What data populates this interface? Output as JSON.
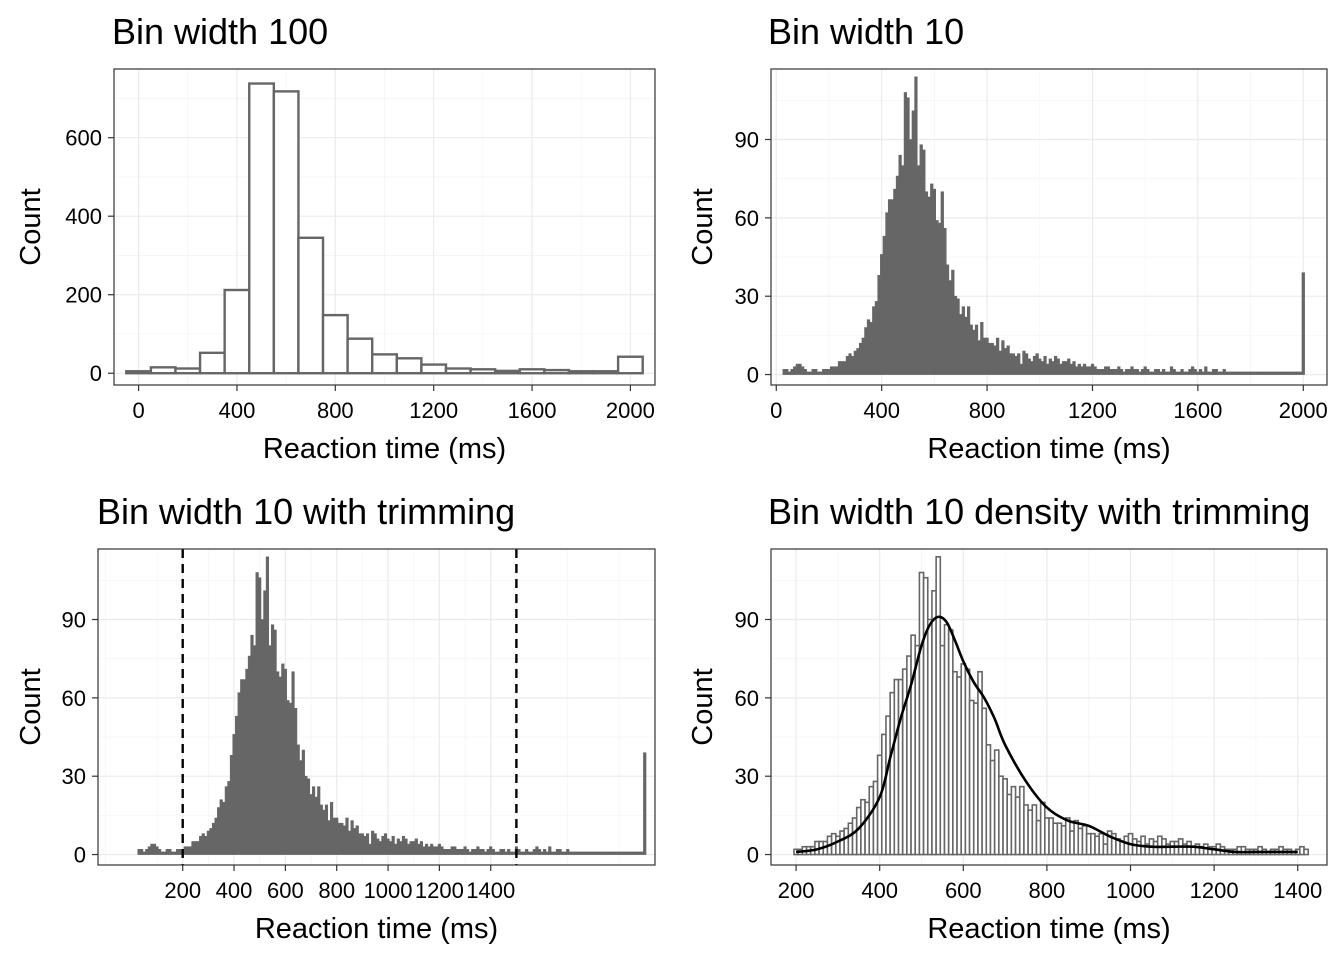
{
  "chart_data": [
    {
      "type": "bar",
      "title": "Bin width 100",
      "xlabel": "Reaction time (ms)",
      "ylabel": "Count",
      "xlim": [
        -100,
        2100
      ],
      "ylim": [
        -30,
        775
      ],
      "xticks": [
        0,
        400,
        800,
        1200,
        1600,
        2000
      ],
      "yticks": [
        0,
        200,
        400,
        600
      ],
      "style": "outline",
      "bin_width": 100,
      "bin_starts": [
        -50,
        50,
        150,
        250,
        350,
        450,
        550,
        650,
        750,
        850,
        950,
        1050,
        1150,
        1250,
        1350,
        1450,
        1550,
        1650,
        1750,
        1850,
        1950
      ],
      "values": [
        5,
        15,
        12,
        52,
        212,
        738,
        718,
        345,
        148,
        88,
        48,
        38,
        22,
        12,
        10,
        6,
        10,
        8,
        5,
        5,
        42
      ]
    },
    {
      "type": "bar",
      "title": "Bin width 10",
      "xlabel": "Reaction time (ms)",
      "ylabel": "Count",
      "xlim": [
        -20,
        2090
      ],
      "ylim": [
        -4,
        117
      ],
      "xticks": [
        0,
        400,
        800,
        1200,
        1600,
        2000
      ],
      "yticks": [
        0,
        30,
        60,
        90
      ],
      "style": "filled",
      "bin_width": 10,
      "bin_start": 25,
      "values": [
        2,
        2,
        1,
        2,
        3,
        4,
        4,
        3,
        2,
        1,
        1,
        2,
        2,
        1,
        1,
        2,
        2,
        2,
        3,
        3,
        3,
        5,
        5,
        5,
        7,
        8,
        7,
        9,
        10,
        12,
        14,
        18,
        21,
        20,
        26,
        28,
        38,
        46,
        53,
        62,
        67,
        67,
        71,
        76,
        84,
        80,
        108,
        106,
        90,
        101,
        114,
        80,
        88,
        86,
        70,
        68,
        73,
        71,
        59,
        58,
        70,
        56,
        42,
        36,
        40,
        30,
        29,
        23,
        26,
        22,
        26,
        19,
        17,
        19,
        13,
        20,
        14,
        14,
        12,
        12,
        11,
        14,
        9,
        13,
        10,
        11,
        8,
        8,
        7,
        8,
        4,
        9,
        8,
        6,
        5,
        7,
        8,
        6,
        5,
        7,
        4,
        6,
        5,
        7,
        6,
        4,
        5,
        5,
        6,
        4,
        5,
        3,
        4,
        3,
        4,
        3,
        3,
        4,
        3,
        2,
        2,
        2,
        3,
        3,
        2,
        2,
        2,
        3,
        2,
        1,
        2,
        2,
        3,
        2,
        2,
        1,
        2,
        3,
        2,
        1,
        1,
        2,
        2,
        1,
        2,
        1,
        1,
        3,
        2,
        1,
        1,
        2,
        1,
        1,
        2,
        3,
        2,
        1,
        2,
        1,
        3,
        1,
        1,
        2,
        2,
        1,
        1,
        2,
        1,
        1,
        1,
        1,
        1,
        1,
        1,
        1,
        1,
        1,
        1,
        1,
        1,
        1,
        1,
        1,
        1,
        1,
        1,
        1,
        1,
        1,
        1,
        1,
        1,
        1,
        1,
        1,
        1,
        39
      ]
    },
    {
      "type": "bar",
      "title": "Bin width 10 with trimming",
      "xlabel": "Reaction time (ms)",
      "ylabel": "Count",
      "xlim": [
        -130,
        2040
      ],
      "ylim": [
        -4,
        117
      ],
      "xticks": [
        200,
        400,
        600,
        800,
        1000,
        1200,
        1400
      ],
      "yticks": [
        0,
        30,
        60,
        90
      ],
      "style": "filled",
      "bin_width": 10,
      "bin_start": 25,
      "values": [
        2,
        2,
        1,
        2,
        3,
        4,
        4,
        3,
        2,
        1,
        1,
        2,
        2,
        1,
        1,
        2,
        2,
        2,
        3,
        3,
        3,
        5,
        5,
        5,
        7,
        8,
        7,
        9,
        10,
        12,
        14,
        18,
        21,
        20,
        26,
        28,
        38,
        46,
        53,
        62,
        67,
        67,
        71,
        76,
        84,
        80,
        108,
        106,
        90,
        101,
        114,
        80,
        88,
        86,
        70,
        68,
        73,
        71,
        59,
        58,
        70,
        56,
        42,
        36,
        40,
        30,
        29,
        23,
        26,
        22,
        26,
        19,
        17,
        19,
        13,
        20,
        14,
        14,
        12,
        12,
        11,
        14,
        9,
        13,
        10,
        11,
        8,
        8,
        7,
        8,
        4,
        9,
        8,
        6,
        5,
        7,
        8,
        6,
        5,
        7,
        4,
        6,
        5,
        7,
        6,
        4,
        5,
        5,
        6,
        4,
        5,
        3,
        4,
        3,
        4,
        3,
        3,
        4,
        3,
        2,
        2,
        2,
        3,
        3,
        2,
        2,
        2,
        3,
        2,
        1,
        2,
        2,
        3,
        2,
        2,
        1,
        2,
        3,
        2,
        1,
        1,
        2,
        2,
        1,
        2,
        1,
        1,
        3,
        2,
        1,
        1,
        2,
        1,
        1,
        2,
        3,
        2,
        1,
        2,
        1,
        3,
        1,
        1,
        2,
        2,
        1,
        1,
        2,
        1,
        1,
        1,
        1,
        1,
        1,
        1,
        1,
        1,
        1,
        1,
        1,
        1,
        1,
        1,
        1,
        1,
        1,
        1,
        1,
        1,
        1,
        1,
        1,
        1,
        1,
        1,
        1,
        1,
        39
      ],
      "vlines": [
        200,
        1500
      ]
    },
    {
      "type": "bar",
      "title": "Bin width 10 density with trimming",
      "xlabel": "Reaction time (ms)",
      "ylabel": "Count",
      "xlim": [
        140,
        1470
      ],
      "ylim": [
        -4,
        117
      ],
      "xticks": [
        200,
        400,
        600,
        800,
        1000,
        1200,
        1400
      ],
      "yticks": [
        0,
        30,
        60,
        90
      ],
      "style": "outline",
      "bin_width": 10,
      "bin_start": 195,
      "values": [
        2,
        2,
        3,
        3,
        3,
        5,
        5,
        5,
        7,
        8,
        7,
        9,
        10,
        12,
        14,
        18,
        21,
        20,
        26,
        28,
        38,
        46,
        53,
        62,
        67,
        67,
        71,
        76,
        84,
        80,
        108,
        106,
        90,
        101,
        114,
        80,
        88,
        86,
        70,
        68,
        73,
        71,
        59,
        58,
        70,
        56,
        42,
        36,
        40,
        30,
        29,
        23,
        26,
        22,
        26,
        19,
        17,
        19,
        13,
        20,
        14,
        14,
        12,
        12,
        11,
        14,
        9,
        13,
        10,
        11,
        8,
        8,
        7,
        8,
        4,
        9,
        8,
        6,
        5,
        7,
        8,
        6,
        5,
        7,
        4,
        6,
        5,
        7,
        6,
        4,
        5,
        5,
        6,
        4,
        5,
        3,
        4,
        3,
        4,
        3,
        3,
        4,
        3,
        2,
        2,
        2,
        3,
        3,
        2,
        2,
        2,
        3,
        2,
        1,
        2,
        2,
        3,
        2,
        2,
        1,
        2,
        3,
        2
      ],
      "density_line": {
        "x": [
          200,
          250,
          300,
          350,
          400,
          425,
          450,
          475,
          500,
          520,
          540,
          560,
          580,
          600,
          625,
          650,
          675,
          700,
          750,
          800,
          850,
          900,
          950,
          1000,
          1050,
          1100,
          1150,
          1200,
          1250,
          1300,
          1350,
          1400
        ],
        "y": [
          1,
          2,
          5,
          10,
          22,
          37,
          52,
          65,
          80,
          88,
          91,
          89,
          82,
          74,
          66,
          60,
          52,
          42,
          28,
          18,
          13,
          11,
          7,
          4,
          3,
          3,
          3,
          2,
          1,
          1,
          1,
          1
        ]
      }
    }
  ]
}
